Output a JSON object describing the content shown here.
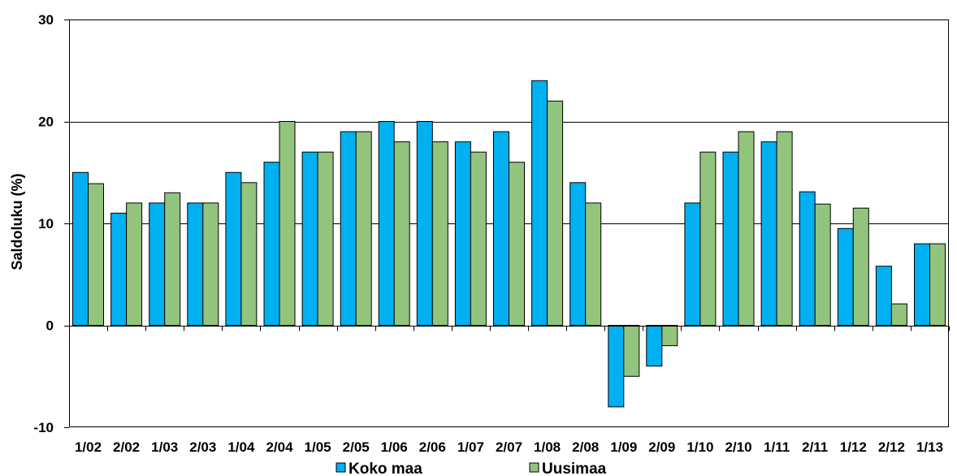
{
  "chart_data": {
    "type": "bar",
    "title": "",
    "xlabel": "",
    "ylabel": "Saldoluku (%)",
    "ylim": [
      -10,
      30
    ],
    "yticks": [
      -10,
      0,
      10,
      20,
      30
    ],
    "grid": true,
    "legend_position": "bottom",
    "categories": [
      "1/02",
      "2/02",
      "1/03",
      "2/03",
      "1/04",
      "2/04",
      "1/05",
      "2/05",
      "1/06",
      "2/06",
      "1/07",
      "2/07",
      "1/08",
      "2/08",
      "1/09",
      "2/09",
      "1/10",
      "2/10",
      "1/11",
      "2/11",
      "1/12",
      "2/12",
      "1/13"
    ],
    "series": [
      {
        "name": "Koko maa",
        "color": "#00B0F0",
        "values": [
          15,
          11,
          12,
          12,
          15,
          16,
          17,
          19,
          20,
          20,
          18,
          19,
          24,
          14,
          -8,
          -4,
          12,
          17,
          18,
          13.1,
          9.5,
          5.8,
          8
        ]
      },
      {
        "name": "Uusimaa",
        "color": "#92C47D",
        "values": [
          13.9,
          12,
          13,
          12,
          14,
          20,
          17,
          19,
          18,
          18,
          17,
          16,
          22,
          12,
          -5,
          -2,
          17,
          19,
          19,
          11.9,
          11.5,
          2.1,
          8
        ]
      }
    ]
  }
}
